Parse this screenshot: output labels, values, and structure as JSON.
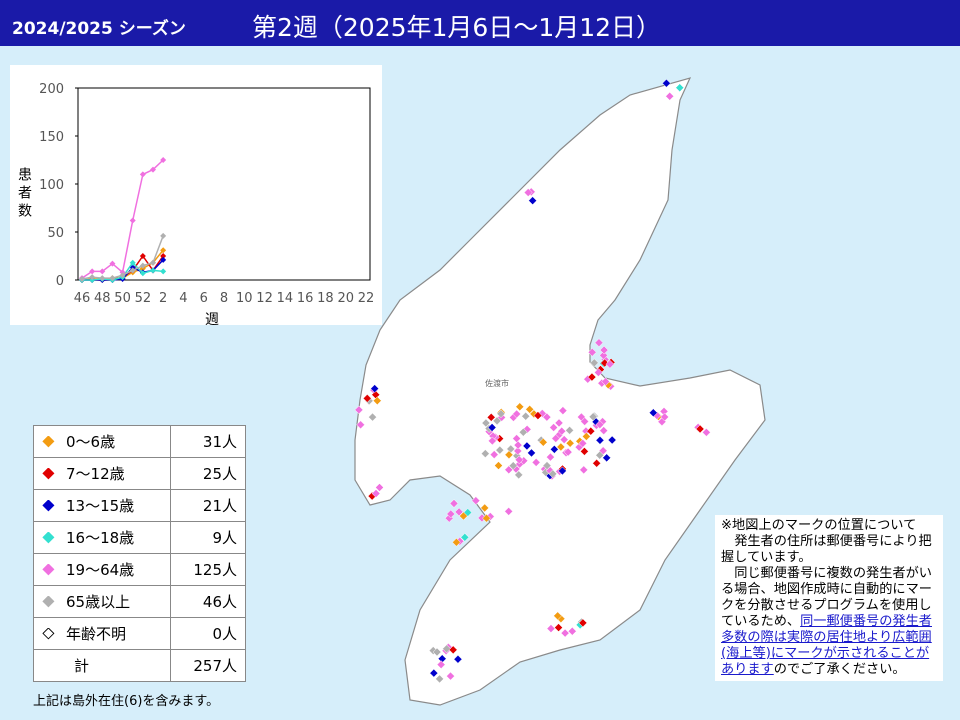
{
  "header": {
    "season": "2024/2025 シーズン",
    "week": "第2週（2025年1月6日～1月12日）"
  },
  "map_label": "佐渡市",
  "chart_data": {
    "type": "line",
    "x_label": "週",
    "y_label": "患者数",
    "categories": [
      "46",
      null,
      "48",
      null,
      "50",
      null,
      "52",
      null,
      "2",
      null,
      "4",
      null,
      "6",
      null,
      "8",
      null,
      "10",
      null,
      "12",
      null,
      "14",
      null,
      "16",
      null,
      "18",
      null,
      "20",
      null,
      "22"
    ],
    "ylim": [
      0,
      200
    ],
    "yticks": [
      0,
      50,
      100,
      150,
      200
    ],
    "grid": false,
    "series": [
      {
        "name": "0～6歳",
        "color": "#f39c12",
        "values": [
          0,
          1,
          1,
          2,
          2,
          8,
          12,
          18,
          31,
          null,
          null,
          null,
          null,
          null,
          null,
          null,
          null,
          null,
          null,
          null,
          null,
          null,
          null,
          null,
          null,
          null,
          null,
          null,
          null
        ]
      },
      {
        "name": "7～12歳",
        "color": "#e00000",
        "values": [
          0,
          0,
          0,
          0,
          3,
          10,
          25,
          10,
          25,
          null,
          null,
          null,
          null,
          null,
          null,
          null,
          null,
          null,
          null,
          null,
          null,
          null,
          null,
          null,
          null,
          null,
          null,
          null,
          null
        ]
      },
      {
        "name": "13～15歳",
        "color": "#0000cc",
        "values": [
          0,
          0,
          0,
          0,
          1,
          13,
          8,
          10,
          21,
          null,
          null,
          null,
          null,
          null,
          null,
          null,
          null,
          null,
          null,
          null,
          null,
          null,
          null,
          null,
          null,
          null,
          null,
          null,
          null
        ]
      },
      {
        "name": "16～18歳",
        "color": "#33e0d0",
        "values": [
          0,
          0,
          1,
          0,
          3,
          18,
          7,
          10,
          9,
          null,
          null,
          null,
          null,
          null,
          null,
          null,
          null,
          null,
          null,
          null,
          null,
          null,
          null,
          null,
          null,
          null,
          null,
          null,
          null
        ]
      },
      {
        "name": "19～64歳",
        "color": "#f070e0",
        "values": [
          2,
          9,
          9,
          17,
          8,
          62,
          110,
          115,
          125,
          null,
          null,
          null,
          null,
          null,
          null,
          null,
          null,
          null,
          null,
          null,
          null,
          null,
          null,
          null,
          null,
          null,
          null,
          null,
          null
        ]
      },
      {
        "name": "65歳以上",
        "color": "#b0b0b0",
        "values": [
          1,
          3,
          2,
          2,
          5,
          10,
          15,
          18,
          46,
          null,
          null,
          null,
          null,
          null,
          null,
          null,
          null,
          null,
          null,
          null,
          null,
          null,
          null,
          null,
          null,
          null,
          null,
          null,
          null
        ]
      }
    ]
  },
  "legend_table": {
    "rows": [
      {
        "label": "0～6歳",
        "count": "31人",
        "color": "#f39c12"
      },
      {
        "label": "7～12歳",
        "count": "25人",
        "color": "#e00000"
      },
      {
        "label": "13～15歳",
        "count": "21人",
        "color": "#0000cc"
      },
      {
        "label": "16～18歳",
        "count": "9人",
        "color": "#33e0d0"
      },
      {
        "label": "19～64歳",
        "count": "125人",
        "color": "#f070e0"
      },
      {
        "label": "65歳以上",
        "count": "46人",
        "color": "#b0b0b0"
      },
      {
        "label": "年齢不明",
        "count": "0人",
        "color": "none"
      },
      {
        "label": "計",
        "count": "257人"
      }
    ],
    "footnote": "上記は島外在住(6)を含みます。"
  },
  "note": {
    "heading": "※地図上のマークの位置について",
    "p1": "発生者の住所は郵便番号により把握しています。",
    "p2": "同じ郵便番号に複数の発生者がいる場合、地図作成時に自動的にマークを分散させるプログラムを使用しているため、",
    "link": "同一郵便番号の発生者多数の際は実際の居住地より広範囲(海上等)にマークが示されることがあります",
    "p2_end": "のでご了承ください。"
  }
}
